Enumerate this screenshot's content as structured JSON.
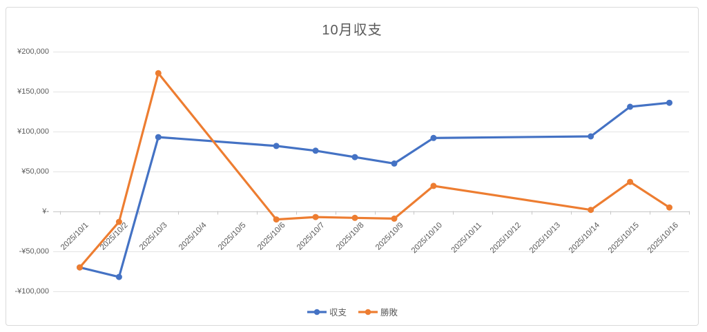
{
  "chart_data": {
    "type": "line",
    "title": "10月収支",
    "categories": [
      "2025/10/1",
      "2025/10/2",
      "2025/10/3",
      "2025/10/4",
      "2025/10/5",
      "2025/10/6",
      "2025/10/7",
      "2025/10/8",
      "2025/10/9",
      "2025/10/10",
      "2025/10/11",
      "2025/10/12",
      "2025/10/13",
      "2025/10/14",
      "2025/10/15",
      "2025/10/16"
    ],
    "series": [
      {
        "key": "balance",
        "name": "収支",
        "color": "#4472C4",
        "values": [
          -70000,
          -82000,
          93000,
          null,
          null,
          82000,
          76000,
          68000,
          60000,
          92000,
          null,
          null,
          null,
          94000,
          131000,
          136000
        ]
      },
      {
        "key": "winloss",
        "name": "勝敗",
        "color": "#ED7D31",
        "values": [
          -70000,
          -13000,
          173000,
          null,
          null,
          -10000,
          -7000,
          -8000,
          -9000,
          32000,
          null,
          null,
          null,
          2000,
          37000,
          5000
        ]
      }
    ],
    "connect_null_gaps": true,
    "marker": "circle",
    "grid": "horizontal",
    "legend_position": "bottom",
    "y_axis": {
      "min": -100000,
      "max": 200000,
      "step": 50000,
      "tick_labels": [
        "¥200,000",
        "¥150,000",
        "¥100,000",
        "¥50,000",
        "¥-",
        "-¥50,000",
        "-¥100,000"
      ]
    },
    "x_axis": {
      "label_rotation_deg": 45
    }
  },
  "colors": {
    "text": "#595959",
    "gridline": "#E3E3E3",
    "axis_line": "#C6C6C6",
    "frame_border": "#D9D9D9"
  }
}
